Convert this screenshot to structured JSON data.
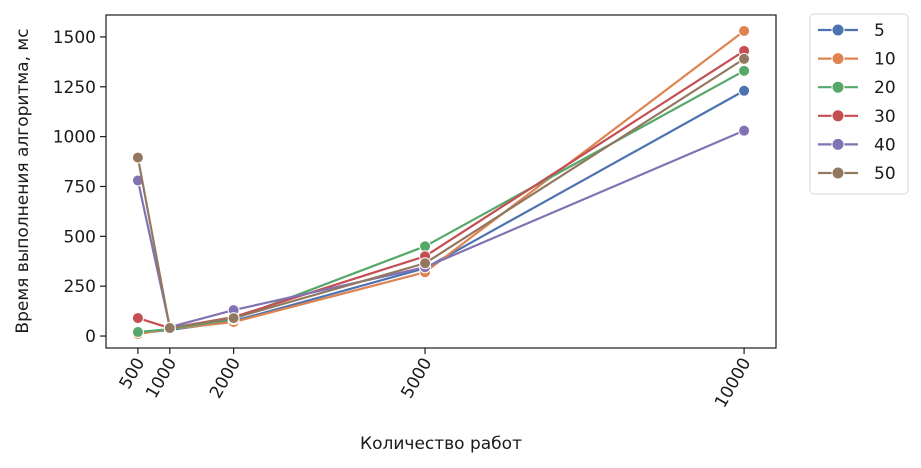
{
  "chart_data": {
    "type": "line",
    "xlabel": "Количество работ",
    "ylabel": "Время выполнения алгоритма, мс",
    "x": [
      500,
      1000,
      2000,
      5000,
      10000
    ],
    "x_tick_labels": [
      "500",
      "1000",
      "2000",
      "5000",
      "10000"
    ],
    "xlim": [
      0,
      10500
    ],
    "ylim": [
      -60,
      1610
    ],
    "y_ticks": [
      0,
      250,
      500,
      750,
      1000,
      1250,
      1500
    ],
    "grid": false,
    "legend_position": "outside-top-right",
    "series": [
      {
        "name": "5",
        "color": "#4c72b0",
        "values": [
          15,
          30,
          75,
          340,
          1230
        ]
      },
      {
        "name": "10",
        "color": "#dd8452",
        "values": [
          10,
          35,
          70,
          320,
          1530
        ]
      },
      {
        "name": "20",
        "color": "#55a868",
        "values": [
          20,
          35,
          85,
          450,
          1330
        ]
      },
      {
        "name": "30",
        "color": "#c44e52",
        "values": [
          90,
          40,
          95,
          400,
          1430
        ]
      },
      {
        "name": "40",
        "color": "#8172b3",
        "values": [
          780,
          45,
          130,
          345,
          1030
        ]
      },
      {
        "name": "50",
        "color": "#937860",
        "values": [
          895,
          40,
          90,
          365,
          1390
        ]
      }
    ]
  }
}
